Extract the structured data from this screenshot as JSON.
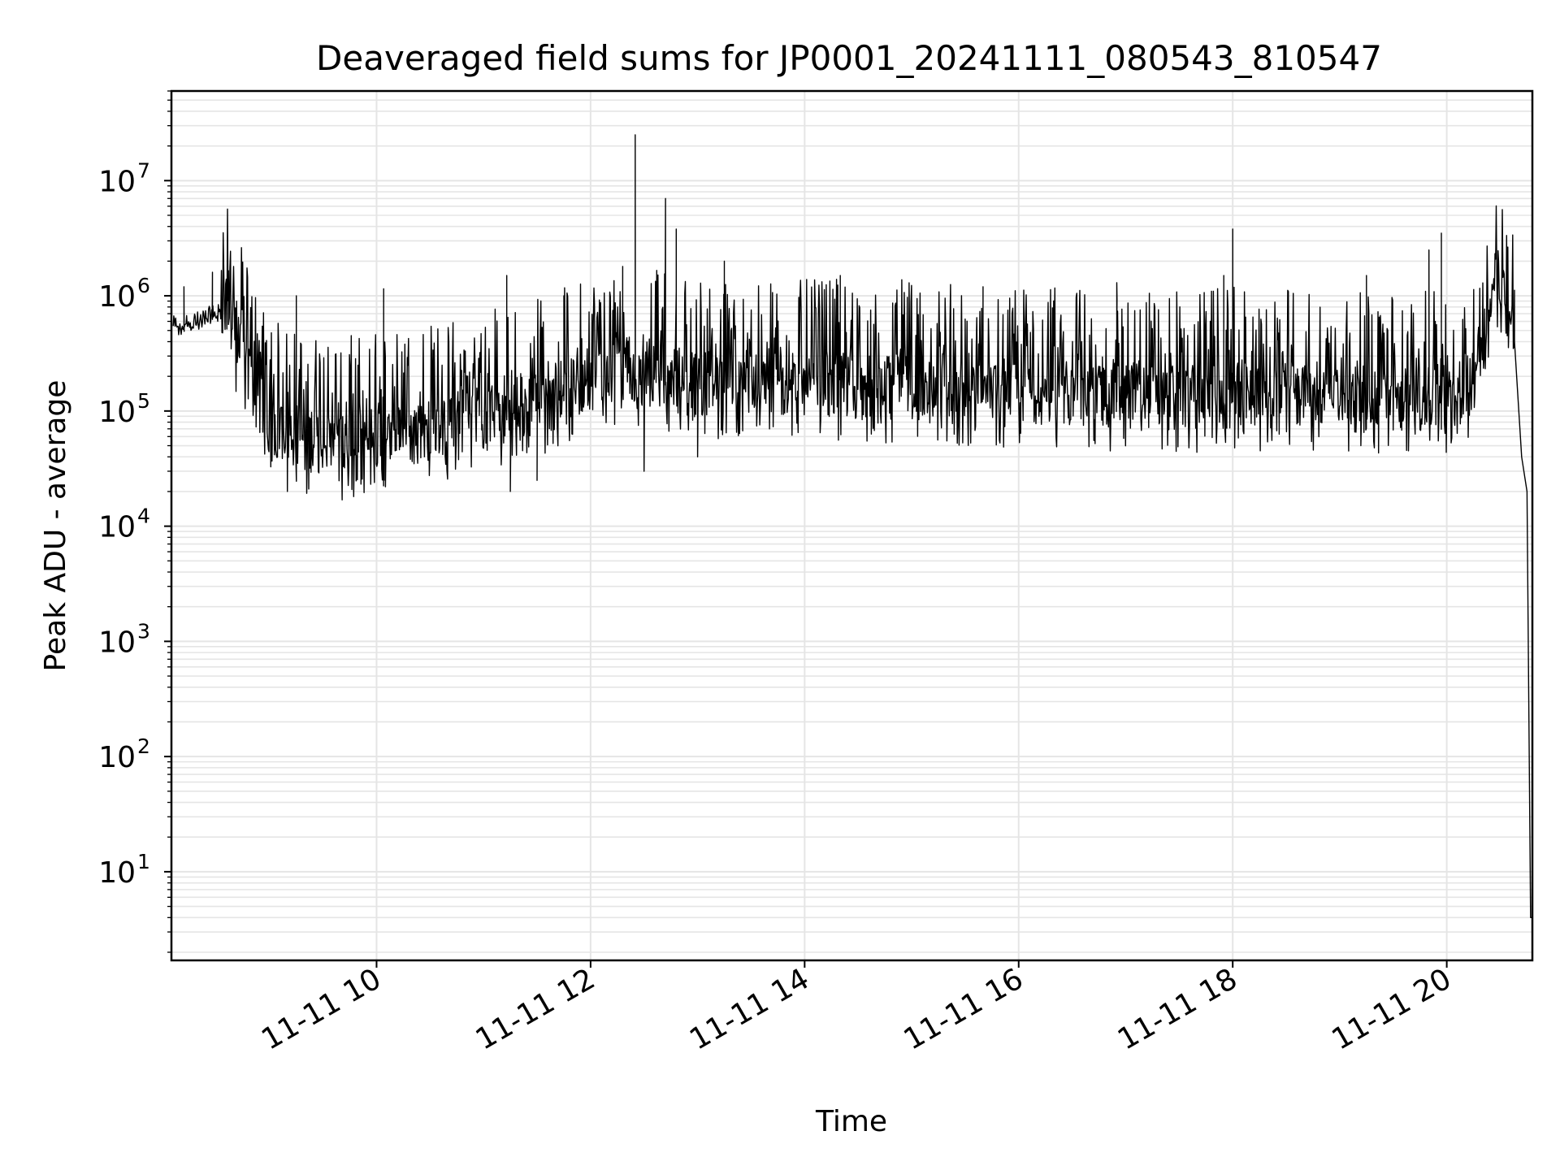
{
  "chart_data": {
    "type": "line",
    "title": "Deaveraged field sums for JP0001_20241111_080543_810547",
    "xlabel": "Time",
    "ylabel": "Peak ADU - average",
    "x_tick_labels": [
      "11-11 10",
      "11-11 12",
      "11-11 14",
      "11-11 16",
      "11-11 18",
      "11-11 20"
    ],
    "x_ticks_hours": [
      10,
      12,
      14,
      16,
      18,
      20
    ],
    "y_tick_base": "10",
    "y_tick_exponents": [
      "1",
      "2",
      "3",
      "4",
      "5",
      "6",
      "7"
    ],
    "y_scale": "log",
    "xlim": [
      "2024-11-11 08:05",
      "2024-11-11 20:48"
    ],
    "ylim": [
      1.7,
      60000000
    ],
    "grid": true,
    "line_color": "#000000",
    "grid_color": "#e5e5e5",
    "series": [
      {
        "x": [
          "08:06",
          "08:20",
          "08:35",
          "08:45",
          "08:55",
          "09:05",
          "09:20",
          "09:40",
          "10:00",
          "10:30",
          "11:00",
          "11:30",
          "12:00",
          "12:20",
          "12:40",
          "13:00",
          "13:30",
          "14:00",
          "14:30",
          "15:00",
          "15:30",
          "16:00",
          "16:30",
          "17:00",
          "17:30",
          "18:00",
          "18:30",
          "19:00",
          "19:30",
          "20:00",
          "20:15",
          "20:30",
          "20:38",
          "20:42",
          "20:45",
          "20:47",
          "20:48"
        ],
        "y": [
          500000,
          550000,
          700000,
          250000,
          90000,
          60000,
          50000,
          45000,
          50000,
          60000,
          80000,
          100000,
          150000,
          180000,
          170000,
          150000,
          140000,
          140000,
          140000,
          140000,
          130000,
          120000,
          120000,
          120000,
          110000,
          120000,
          120000,
          110000,
          110000,
          110000,
          170000,
          1100000,
          400000,
          40000,
          20000,
          4,
          4
        ]
      },
      {
        "x": [
          "08:12",
          "08:28",
          "08:37",
          "09:15",
          "10:04",
          "11:13",
          "11:45",
          "12:18",
          "12:25",
          "12:42",
          "12:48",
          "13:15",
          "14:20",
          "15:40",
          "16:55",
          "17:55",
          "18:00",
          "19:15",
          "19:50",
          "19:57"
        ],
        "y": [
          1200000,
          1600000,
          1650000,
          1000000,
          1150000,
          1500000,
          1000000,
          1800000,
          25000000,
          7000000,
          3800000,
          2000000,
          1500000,
          1200000,
          1300000,
          1500000,
          3800000,
          1500000,
          2500000,
          3500000
        ]
      },
      {
        "x": [
          "09:10",
          "09:22",
          "10:05",
          "11:15",
          "11:30",
          "12:30",
          "13:00"
        ],
        "y": [
          20000,
          21000,
          22000,
          20000,
          25000,
          30000,
          40000
        ]
      }
    ]
  }
}
